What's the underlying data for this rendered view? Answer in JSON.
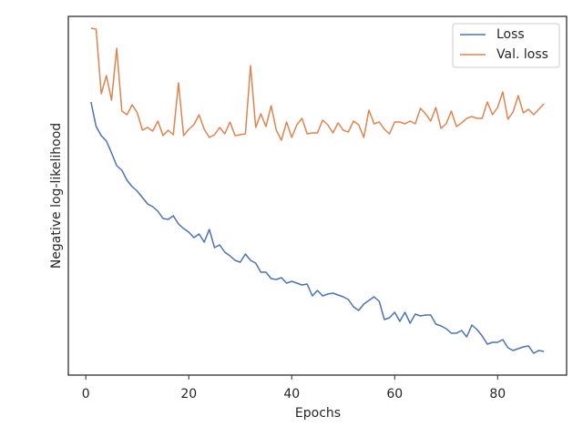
{
  "chart_data": {
    "type": "line",
    "xlabel": "Epochs",
    "ylabel": "Negative log-likelihood",
    "x": [
      1,
      2,
      3,
      4,
      5,
      6,
      7,
      8,
      9,
      10,
      11,
      12,
      13,
      14,
      15,
      16,
      17,
      18,
      19,
      20,
      21,
      22,
      23,
      24,
      25,
      26,
      27,
      28,
      29,
      30,
      31,
      32,
      33,
      34,
      35,
      36,
      37,
      38,
      39,
      40,
      41,
      42,
      43,
      44,
      45,
      46,
      47,
      48,
      49,
      50,
      51,
      52,
      53,
      54,
      55,
      56,
      57,
      58,
      59,
      60,
      61,
      62,
      63,
      64,
      65,
      66,
      67,
      68,
      69,
      70,
      71,
      72,
      73,
      74,
      75,
      76,
      77,
      78,
      79,
      80,
      81,
      82,
      83,
      84,
      85,
      86,
      87,
      88,
      89
    ],
    "series": [
      {
        "name": "Loss",
        "color": "#4c72b0",
        "values": [
          300,
          273,
          263,
          257,
          244,
          230,
          225,
          214,
          207,
          202,
          195,
          188,
          185,
          180,
          172,
          171,
          175,
          166,
          161,
          157,
          151,
          155,
          146,
          160,
          140,
          143,
          135,
          131,
          126,
          124,
          133,
          126,
          123,
          113,
          113,
          106,
          105,
          107,
          101,
          103,
          101,
          99,
          100,
          87,
          93,
          87,
          89,
          90,
          88,
          86,
          83,
          75,
          71,
          78,
          82,
          86,
          81,
          61,
          63,
          69,
          59,
          69,
          57,
          67,
          65,
          66,
          66,
          56,
          54,
          51,
          46,
          46,
          49,
          42,
          55,
          50,
          43,
          34,
          36,
          36,
          39,
          30,
          27,
          29,
          31,
          32,
          24,
          27,
          26
        ]
      },
      {
        "name": "Val. loss",
        "color": "#dd8452",
        "values": [
          381,
          380,
          309,
          329,
          302,
          359,
          290,
          286,
          297,
          288,
          269,
          272,
          268,
          279,
          263,
          269,
          264,
          321,
          263,
          270,
          275,
          286,
          270,
          261,
          264,
          272,
          265,
          278,
          263,
          264,
          265,
          340,
          272,
          287,
          273,
          296,
          269,
          258,
          278,
          261,
          275,
          282,
          265,
          266,
          266,
          280,
          275,
          266,
          277,
          269,
          267,
          279,
          275,
          261,
          291,
          276,
          278,
          270,
          265,
          278,
          278,
          276,
          279,
          276,
          293,
          287,
          279,
          294,
          271,
          276,
          290,
          273,
          277,
          282,
          284,
          282,
          282,
          300,
          286,
          294,
          311,
          281,
          289,
          307,
          288,
          292,
          286,
          292,
          298
        ]
      }
    ],
    "xlim": [
      -3.4,
      93.4
    ],
    "xticks": [
      0,
      20,
      40,
      60,
      80
    ],
    "ylim": [
      0,
      394
    ],
    "legend": "upper right"
  }
}
